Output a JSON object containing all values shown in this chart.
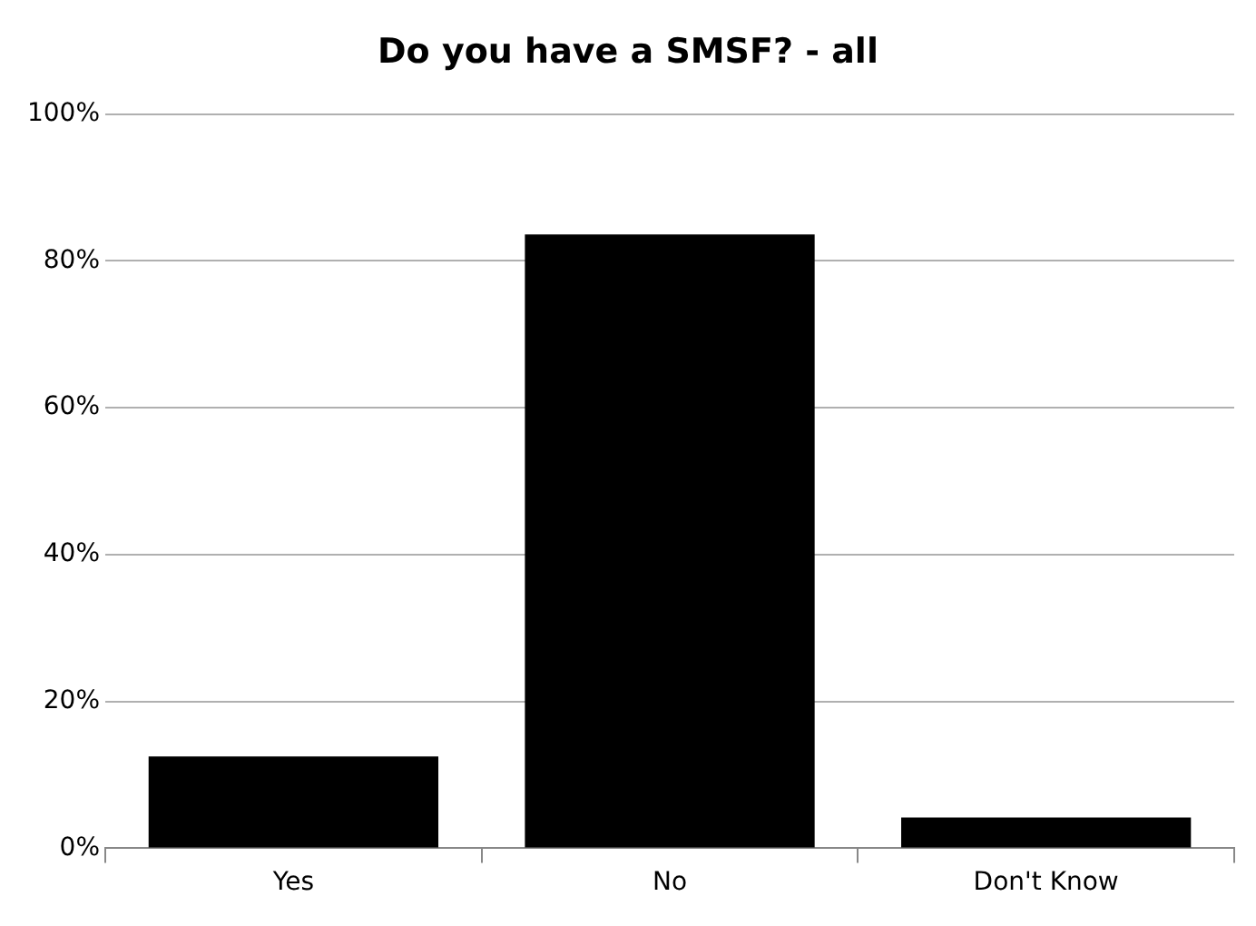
{
  "chart_data": {
    "type": "bar",
    "title": "Do you have a SMSF? - all",
    "categories": [
      "Yes",
      "No",
      "Don't Know"
    ],
    "values": [
      12.5,
      83.6,
      4.2
    ],
    "color": "#000000",
    "ylim": [
      0,
      100
    ],
    "yticks": [
      {
        "value": 0,
        "label": "0%"
      },
      {
        "value": 20,
        "label": "20%"
      },
      {
        "value": 40,
        "label": "40%"
      },
      {
        "value": 60,
        "label": "60%"
      },
      {
        "value": 80,
        "label": "80%"
      },
      {
        "value": 100,
        "label": "100%"
      }
    ],
    "grid": "y",
    "legend": false
  }
}
